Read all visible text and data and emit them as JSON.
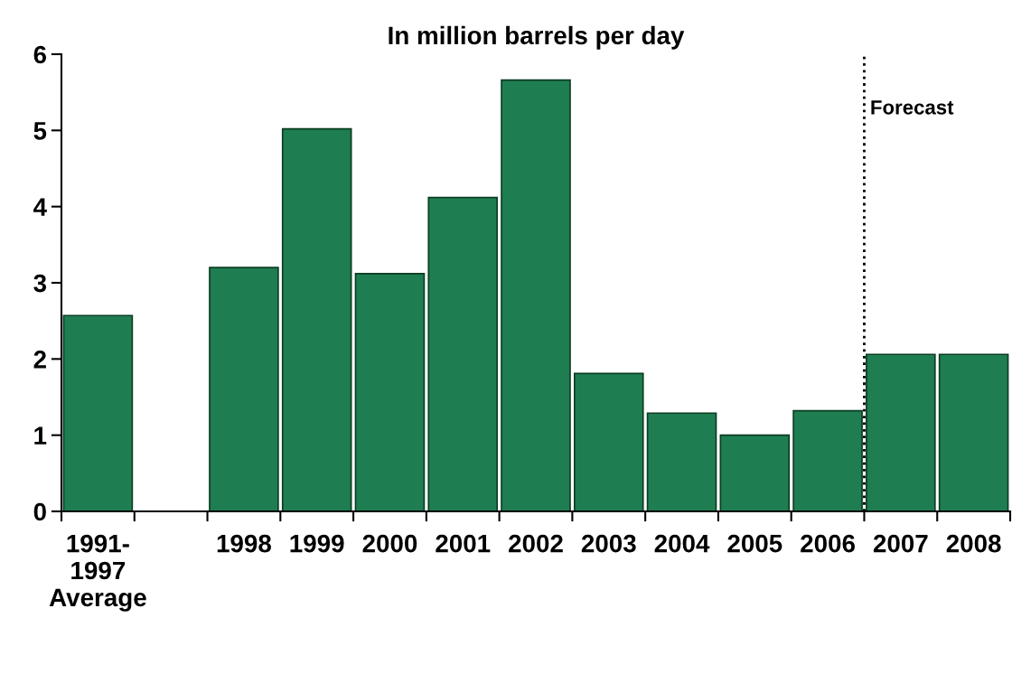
{
  "chart_data": {
    "type": "bar",
    "title": "In million barrels per day",
    "categories": [
      "1991-\n1997\nAverage",
      null,
      "1998",
      "1999",
      "2000",
      "2001",
      "2002",
      "2003",
      "2004",
      "2005",
      "2006",
      "2007",
      "2008"
    ],
    "values": [
      2.57,
      null,
      3.2,
      5.02,
      3.12,
      4.12,
      5.66,
      1.81,
      1.29,
      1.0,
      1.32,
      2.06,
      2.06
    ],
    "color": "#1f7d52",
    "ylim": [
      0,
      6
    ],
    "yticks": [
      0,
      1,
      2,
      3,
      4,
      5,
      6
    ],
    "grid": false,
    "annotations": [
      "Forecast"
    ]
  }
}
